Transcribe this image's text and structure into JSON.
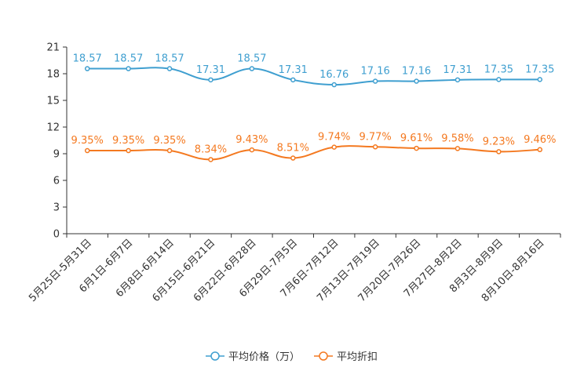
{
  "chart_data": {
    "type": "line",
    "title": "",
    "xlabel": "",
    "ylabel": "",
    "ylim": [
      0,
      21
    ],
    "yticks": [
      0,
      3,
      6,
      9,
      12,
      15,
      18,
      21
    ],
    "categories": [
      "5月25日-5月31日",
      "6月1日-6月7日",
      "6月8日-6月14日",
      "6月15日-6月21日",
      "6月22日-6月28日",
      "6月29日-7月5日",
      "7月6日-7月12日",
      "7月13日-7月19日",
      "7月20日-7月26日",
      "7月27日-8月2日",
      "8月3日-8月9日",
      "8月10日-8月16日"
    ],
    "series": [
      {
        "name": "平均价格（万）",
        "color": "#3f9fd0",
        "values": [
          18.57,
          18.57,
          18.57,
          17.31,
          18.57,
          17.31,
          16.76,
          17.16,
          17.16,
          17.31,
          17.35,
          17.35
        ],
        "labels": [
          "18.57",
          "18.57",
          "18.57",
          "17.31",
          "18.57",
          "17.31",
          "16.76",
          "17.16",
          "17.16",
          "17.31",
          "17.35",
          "17.35"
        ]
      },
      {
        "name": "平均折扣",
        "color": "#f47920",
        "values": [
          9.35,
          9.35,
          9.35,
          8.34,
          9.43,
          8.51,
          9.74,
          9.77,
          9.61,
          9.58,
          9.23,
          9.46
        ],
        "labels": [
          "9.35%",
          "9.35%",
          "9.35%",
          "8.34%",
          "9.43%",
          "8.51%",
          "9.74%",
          "9.77%",
          "9.61%",
          "9.58%",
          "9.23%",
          "9.46%"
        ]
      }
    ],
    "legend_position": "bottom-center",
    "grid": false
  }
}
